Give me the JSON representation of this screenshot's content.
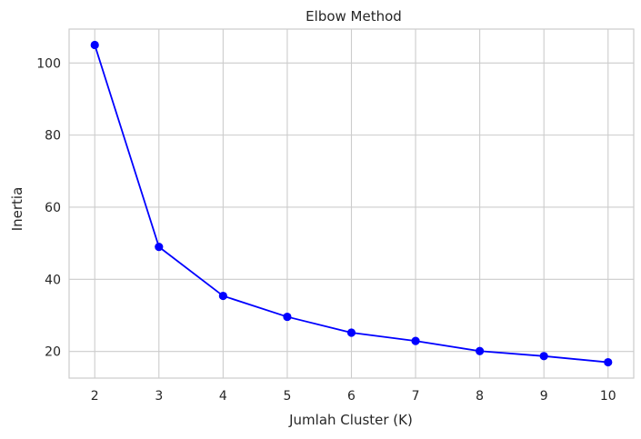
{
  "chart_data": {
    "type": "line",
    "title": "Elbow Method",
    "xlabel": "Jumlah Cluster (K)",
    "ylabel": "Inertia",
    "x": [
      2,
      3,
      4,
      5,
      6,
      7,
      8,
      9,
      10
    ],
    "series": [
      {
        "values": [
          105.0,
          49.0,
          35.4,
          29.6,
          25.2,
          22.9,
          20.1,
          18.7,
          17.0
        ],
        "color": "#0000ff",
        "marker": "circle"
      }
    ],
    "xticks": [
      "2",
      "3",
      "4",
      "5",
      "6",
      "7",
      "8",
      "9",
      "10"
    ],
    "yticks": [
      "20",
      "40",
      "60",
      "80",
      "100"
    ],
    "xlim": [
      1.6,
      10.4
    ],
    "ylim": [
      12.6,
      109.4
    ],
    "grid": true,
    "background": "#ffffff",
    "grid_color": "#cccccc",
    "spine_color": "#cccccc"
  }
}
